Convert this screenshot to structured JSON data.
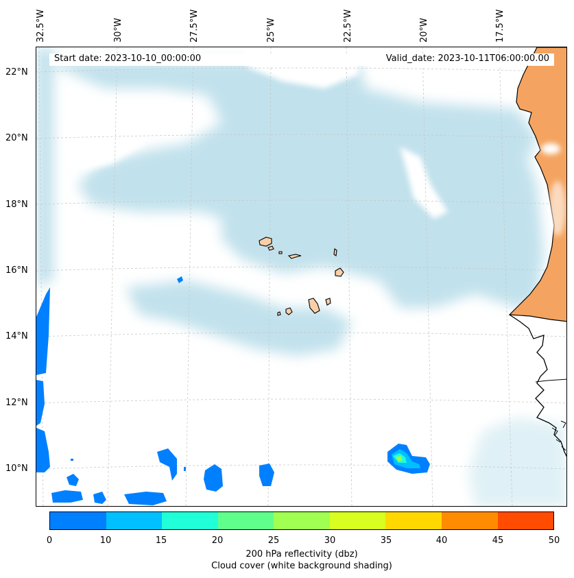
{
  "map": {
    "start_date": "Start date: 2023-10-10_00:00:00",
    "valid_date": "Valid_date: 2023-10-11T06:00:00.00",
    "lon_labels": [
      "32.5°W",
      "30°W",
      "27.5°W",
      "25°W",
      "22.5°W",
      "20°W",
      "17.5°W"
    ],
    "lat_labels": [
      "22°N",
      "20°N",
      "18°N",
      "16°N",
      "14°N",
      "12°N",
      "10°N"
    ],
    "extent": {
      "lon_min": -32.5,
      "lon_max": -15.5,
      "lat_min": 9.0,
      "lat_max": 22.8
    },
    "colors": {
      "cloud": "#add8e6",
      "land": "#f4a460",
      "coast": "#000000",
      "island_fill": "#f8cfa8",
      "grid": "#c8c8c8"
    }
  },
  "colorbar": {
    "ticks": [
      "0",
      "10",
      "15",
      "20",
      "25",
      "30",
      "35",
      "40",
      "45",
      "50"
    ],
    "colors": [
      "#0080ff",
      "#00c0ff",
      "#20ffd8",
      "#60ff8c",
      "#a0ff50",
      "#d8ff20",
      "#ffd800",
      "#ff8c00",
      "#ff4c00"
    ],
    "label_line1": "200 hPa reflectivity (dbz)",
    "label_line2": "Cloud cover (white background shading)"
  }
}
